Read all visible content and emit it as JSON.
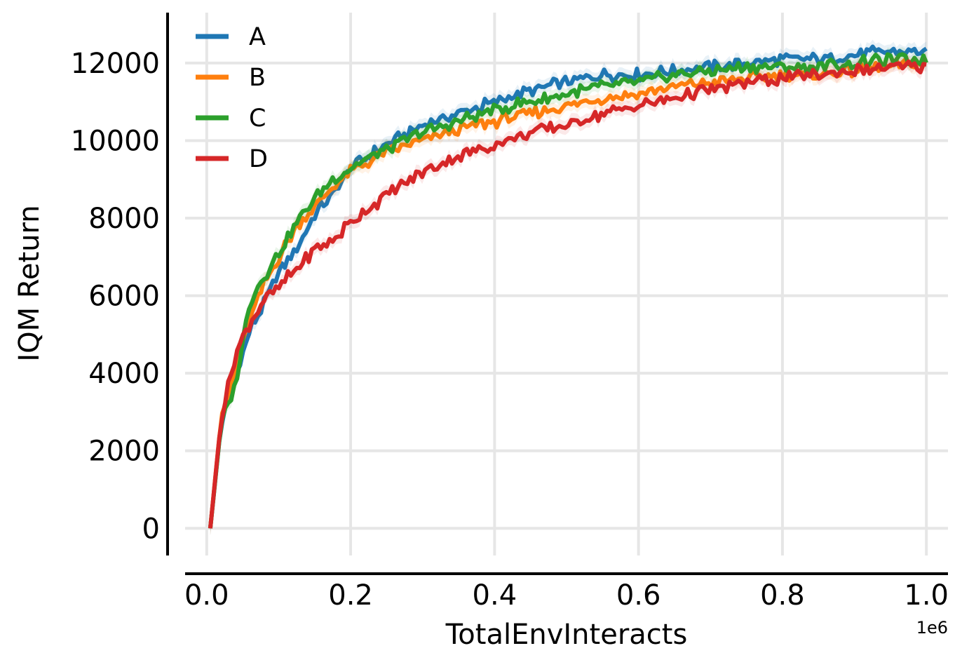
{
  "chart_data": {
    "type": "line",
    "xlabel": "TotalEnvInteracts",
    "ylabel": "IQM Return",
    "x_offset_label": "1e6",
    "xlim": [
      -0.03,
      1.03
    ],
    "ylim": [
      -700,
      13300
    ],
    "grid": true,
    "legend_position": "top-left",
    "x_ticks": [
      0.0,
      0.2,
      0.4,
      0.6,
      0.8,
      1.0
    ],
    "x_tick_labels": [
      "0.0",
      "0.2",
      "0.4",
      "0.6",
      "0.8",
      "1.0"
    ],
    "y_ticks": [
      0,
      2000,
      4000,
      6000,
      8000,
      10000,
      12000
    ],
    "y_tick_labels": [
      "0",
      "2000",
      "4000",
      "6000",
      "8000",
      "10000",
      "12000"
    ],
    "x": [
      0.005,
      0.02,
      0.04,
      0.06,
      0.08,
      0.1,
      0.125,
      0.15,
      0.175,
      0.2,
      0.25,
      0.3,
      0.35,
      0.4,
      0.45,
      0.5,
      0.55,
      0.6,
      0.65,
      0.7,
      0.75,
      0.8,
      0.85,
      0.9,
      0.95,
      1.0
    ],
    "series": [
      {
        "name": "A",
        "color": "#1f77b4",
        "values": [
          0,
          2700,
          3900,
          5100,
          5800,
          6600,
          7200,
          8100,
          8600,
          9300,
          9900,
          10400,
          10700,
          11000,
          11300,
          11500,
          11700,
          11700,
          11800,
          11900,
          12000,
          12100,
          12100,
          12200,
          12300,
          12300
        ]
      },
      {
        "name": "B",
        "color": "#ff7f0e",
        "values": [
          0,
          2800,
          4100,
          5400,
          6300,
          7000,
          7800,
          8300,
          8800,
          9200,
          9700,
          10000,
          10300,
          10500,
          10700,
          10900,
          11100,
          11200,
          11400,
          11500,
          11600,
          11700,
          11700,
          11800,
          11900,
          12000
        ]
      },
      {
        "name": "C",
        "color": "#2ca02c",
        "values": [
          0,
          2700,
          3700,
          5900,
          6500,
          7100,
          7900,
          8500,
          9000,
          9300,
          9800,
          10200,
          10500,
          10800,
          11000,
          11200,
          11400,
          11500,
          11700,
          11800,
          11900,
          11900,
          11900,
          12000,
          12100,
          12100
        ]
      },
      {
        "name": "D",
        "color": "#d62728",
        "values": [
          0,
          2800,
          4500,
          5300,
          5900,
          6200,
          6700,
          7200,
          7400,
          7900,
          8600,
          9200,
          9600,
          9900,
          10200,
          10400,
          10700,
          10900,
          11100,
          11300,
          11500,
          11600,
          11700,
          11800,
          11900,
          11900
        ]
      }
    ]
  }
}
